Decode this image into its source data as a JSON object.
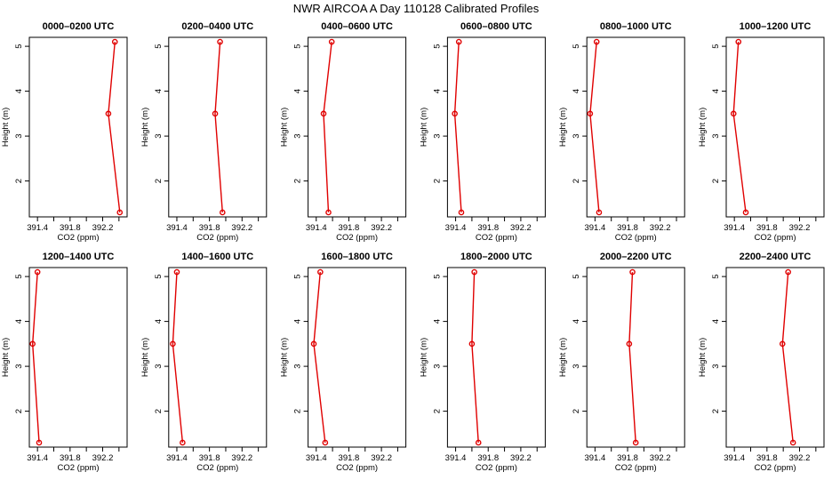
{
  "title": "NWR AIRCOA A  Day 110128  Calibrated Profiles",
  "colors": {
    "line": "#e00000",
    "frame": "#000000"
  },
  "chart_data": {
    "type": "line",
    "layout": "2x6 small multiples",
    "xlabel": "CO2 (ppm)",
    "ylabel": "Height (m)",
    "xlim": [
      391.3,
      392.5
    ],
    "ylim": [
      1.2,
      5.2
    ],
    "xticks": [
      391.4,
      391.8,
      392.2
    ],
    "xtick_labels": [
      "391.4",
      "391.8",
      "392.2"
    ],
    "yticks": [
      2,
      3,
      4,
      5
    ],
    "ytick_labels": [
      "2",
      "3",
      "4",
      "5"
    ],
    "grid": false,
    "panels": [
      {
        "title": "0000–0200 UTC",
        "x": [
          392.35,
          392.27,
          392.41
        ],
        "y": [
          5.1,
          3.5,
          1.3
        ]
      },
      {
        "title": "0200–0400 UTC",
        "x": [
          391.93,
          391.87,
          391.96
        ],
        "y": [
          5.1,
          3.5,
          1.3
        ]
      },
      {
        "title": "0400–0600 UTC",
        "x": [
          391.59,
          391.49,
          391.55
        ],
        "y": [
          5.1,
          3.5,
          1.3
        ]
      },
      {
        "title": "0600–0800 UTC",
        "x": [
          391.44,
          391.39,
          391.47
        ],
        "y": [
          5.1,
          3.5,
          1.3
        ]
      },
      {
        "title": "0800–1000 UTC",
        "x": [
          391.42,
          391.34,
          391.45
        ],
        "y": [
          5.1,
          3.5,
          1.3
        ]
      },
      {
        "title": "1000–1200 UTC",
        "x": [
          391.45,
          391.39,
          391.54
        ],
        "y": [
          5.1,
          3.5,
          1.3
        ]
      },
      {
        "title": "1200–1400 UTC",
        "x": [
          391.4,
          391.34,
          391.42
        ],
        "y": [
          5.1,
          3.5,
          1.3
        ]
      },
      {
        "title": "1400–1600 UTC",
        "x": [
          391.4,
          391.35,
          391.47
        ],
        "y": [
          5.1,
          3.5,
          1.3
        ]
      },
      {
        "title": "1600–1800 UTC",
        "x": [
          391.45,
          391.37,
          391.51
        ],
        "y": [
          5.1,
          3.5,
          1.3
        ]
      },
      {
        "title": "1800–2000 UTC",
        "x": [
          391.63,
          391.6,
          391.68
        ],
        "y": [
          5.1,
          3.5,
          1.3
        ]
      },
      {
        "title": "2000–2200 UTC",
        "x": [
          391.86,
          391.82,
          391.9
        ],
        "y": [
          5.1,
          3.5,
          1.3
        ]
      },
      {
        "title": "2200–2400 UTC",
        "x": [
          392.06,
          391.99,
          392.12
        ],
        "y": [
          5.1,
          3.5,
          1.3
        ]
      }
    ]
  }
}
